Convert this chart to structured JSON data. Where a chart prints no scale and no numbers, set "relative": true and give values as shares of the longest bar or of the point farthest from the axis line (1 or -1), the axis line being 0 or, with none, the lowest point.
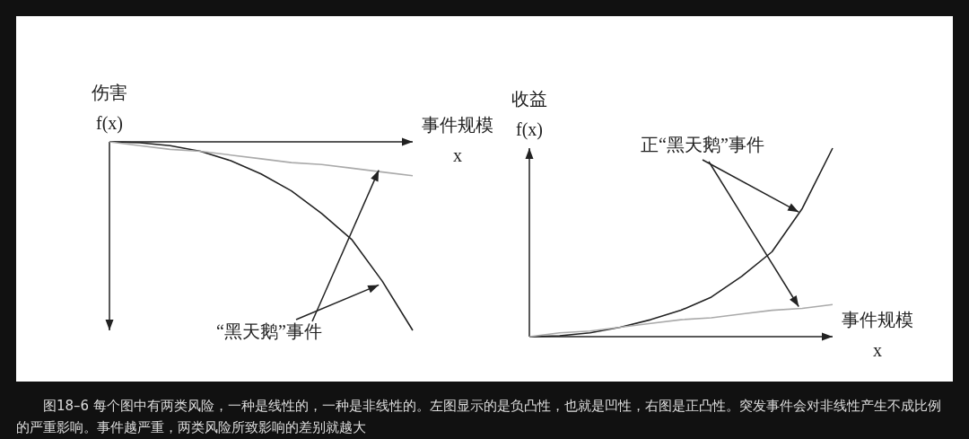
{
  "chart_data": [
    {
      "type": "line",
      "relative": true,
      "ylabel": "伤害\nf(x)",
      "xlabel": "事件规模\nx",
      "categories": [
        null,
        null,
        null,
        null,
        null,
        null,
        null,
        null,
        null,
        null,
        null
      ],
      "series": [
        {
          "color": "#222222",
          "values": [
            0,
            -0.005,
            -0.02,
            -0.05,
            -0.1,
            -0.17,
            -0.26,
            -0.38,
            -0.52,
            -0.74,
            -1
          ]
        },
        {
          "color": "#aaaaaa",
          "values": [
            0,
            -0.02,
            -0.04,
            -0.05,
            -0.07,
            -0.09,
            -0.11,
            -0.12,
            -0.14,
            -0.16,
            -0.18
          ]
        }
      ],
      "annotations": [
        "“黑天鹅”事件"
      ]
    },
    {
      "type": "line",
      "relative": true,
      "ylabel": "收益\nf(x)",
      "xlabel": "事件规模\nx",
      "categories": [
        null,
        null,
        null,
        null,
        null,
        null,
        null,
        null,
        null,
        null,
        null
      ],
      "series": [
        {
          "color": "#222222",
          "values": [
            0,
            0.005,
            0.02,
            0.05,
            0.09,
            0.14,
            0.21,
            0.32,
            0.45,
            0.68,
            1
          ]
        },
        {
          "color": "#aaaaaa",
          "values": [
            0,
            0.02,
            0.03,
            0.05,
            0.07,
            0.09,
            0.1,
            0.12,
            0.14,
            0.15,
            0.17
          ]
        }
      ],
      "annotations": [
        "正“黑天鹅”事件"
      ]
    },
    {
      "type": "other",
      "annotations": [
        "图18–6 每个图中有两类风险，一种是线性的，一种是非线性的。左图显示的是负凸性，也就是凹性，右图是正凸性。突发事件会对非线性产生不成比例的严重影响。事件越严重，两类风险所致影响的差别就越大"
      ]
    }
  ]
}
